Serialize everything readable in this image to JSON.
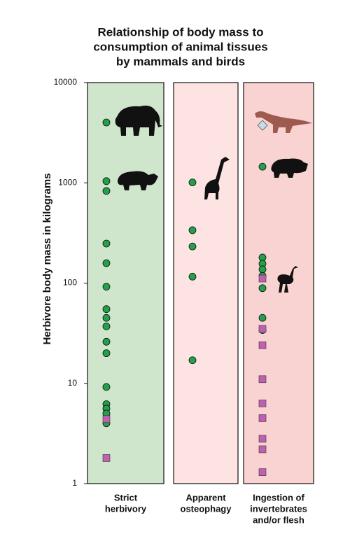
{
  "chart_data": {
    "type": "strip",
    "title": [
      "Relationship of body mass to",
      "consumption of animal tissues",
      "by mammals and birds"
    ],
    "y_label": "Herbivore body mass in kilograms",
    "categories": [
      [
        "Strict",
        "herbivory"
      ],
      [
        "Apparent",
        "osteophagy"
      ],
      [
        "Ingestion of",
        "invertebrates",
        "and/or flesh"
      ]
    ],
    "panel_colors": [
      "#cfe6cc",
      "#fde4e2",
      "#f9d3d1"
    ],
    "ylim": [
      1,
      10000
    ],
    "yticks": [
      1,
      10,
      100,
      1000,
      10000
    ],
    "log_y": true,
    "series": [
      {
        "marker": "circle",
        "color": "#22a04a",
        "values": [
          [
            4000,
            1040,
            830,
            248,
            158,
            92,
            55,
            45,
            37,
            26,
            20,
            9.2,
            6.2,
            5.6,
            5.0,
            4.0
          ],
          [
            1010,
            337,
            232,
            116,
            17
          ],
          [
            1450,
            180,
            156,
            137,
            118,
            89,
            45,
            34
          ]
        ]
      },
      {
        "marker": "square",
        "color": "#c060b0",
        "values": [
          [
            4.4,
            1.8
          ],
          [],
          [
            111,
            35,
            24,
            11,
            6.3,
            4.5,
            2.8,
            2.2,
            1.3
          ]
        ]
      },
      {
        "marker": "diamond",
        "color": "#c6dce8",
        "values": [
          [],
          [],
          [
            3750
          ]
        ]
      }
    ]
  }
}
